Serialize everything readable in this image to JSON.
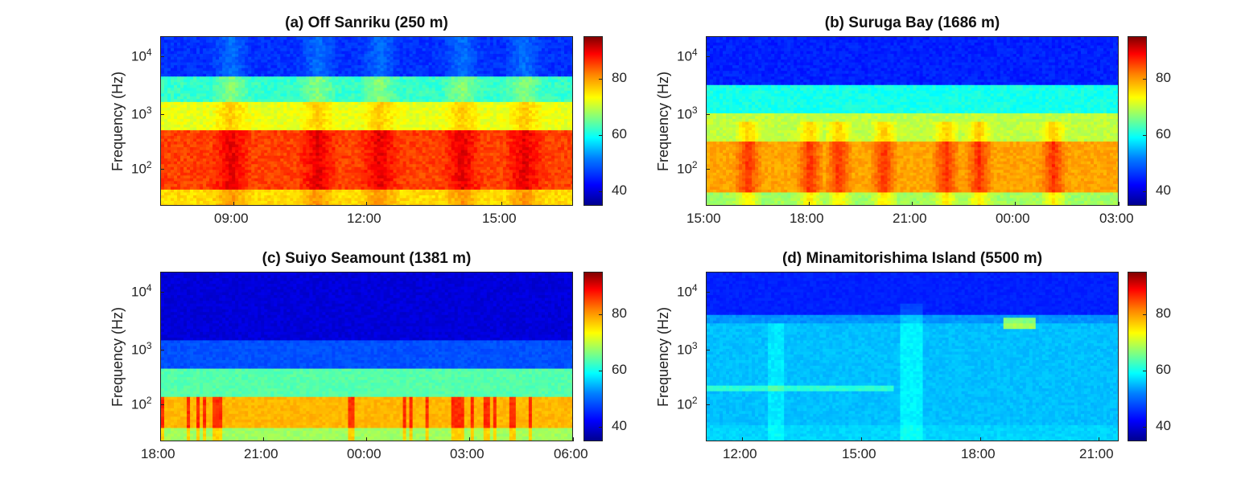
{
  "colors": {
    "deep_blue": "#00008f",
    "blue": "#0000ff",
    "cyan": "#00ffff",
    "yellow": "#ffff00",
    "red": "#ff0000",
    "dark_red": "#800000"
  },
  "chart_data": [
    {
      "type": "heatmap",
      "title": "(a) Off Sanriku (250 m)",
      "xlabel": "",
      "ylabel": "Frequency (Hz)",
      "y_scale": "log",
      "yticks": [
        "10^2",
        "10^3",
        "10^4"
      ],
      "xticks": [
        "09:00",
        "12:00",
        "15:00"
      ],
      "colorbar_ticks": [
        40,
        60,
        80
      ],
      "colorbar_range": [
        35,
        95
      ]
    },
    {
      "type": "heatmap",
      "title": "(b) Suruga Bay (1686 m)",
      "xlabel": "",
      "ylabel": "Frequency (Hz)",
      "y_scale": "log",
      "yticks": [
        "10^2",
        "10^3",
        "10^4"
      ],
      "xticks": [
        "15:00",
        "18:00",
        "21:00",
        "00:00",
        "03:00"
      ],
      "colorbar_ticks": [
        40,
        60,
        80
      ],
      "colorbar_range": [
        35,
        95
      ]
    },
    {
      "type": "heatmap",
      "title": "(c) Suiyo Seamount (1381 m)",
      "xlabel": "",
      "ylabel": "Frequency (Hz)",
      "y_scale": "log",
      "yticks": [
        "10^2",
        "10^3",
        "10^4"
      ],
      "xticks": [
        "18:00",
        "21:00",
        "00:00",
        "03:00",
        "06:00"
      ],
      "colorbar_ticks": [
        40,
        60,
        80
      ],
      "colorbar_range": [
        35,
        95
      ]
    },
    {
      "type": "heatmap",
      "title": "(d) Minamitorishima Island (5500 m)",
      "xlabel": "",
      "ylabel": "Frequency (Hz)",
      "y_scale": "log",
      "yticks": [
        "10^2",
        "10^3",
        "10^4"
      ],
      "xticks": [
        "12:00",
        "15:00",
        "18:00",
        "21:00"
      ],
      "colorbar_ticks": [
        40,
        60,
        80
      ],
      "colorbar_range": [
        35,
        95
      ]
    }
  ]
}
